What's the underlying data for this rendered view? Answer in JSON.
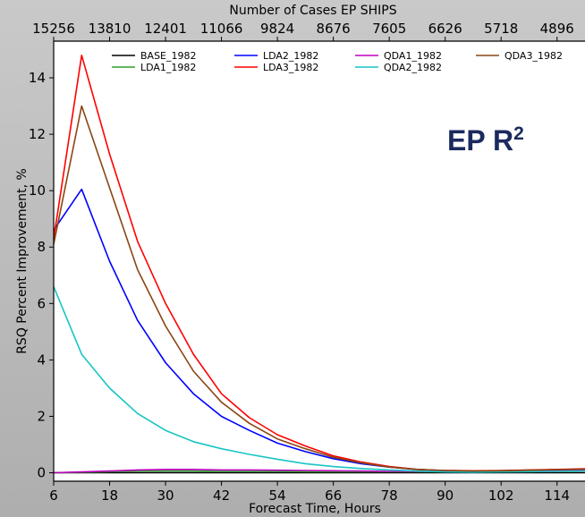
{
  "chart_data": {
    "type": "line",
    "top_axis_title": "Number of Cases EP SHIPS",
    "top_tick_labels": [
      "15256",
      "13810",
      "12401",
      "11066",
      "9824",
      "8676",
      "7605",
      "6626",
      "5718",
      "4896"
    ],
    "xlabel": "Forecast Time, Hours",
    "ylabel": "RSQ Percent Improvement, %",
    "xlim": [
      6,
      120
    ],
    "ylim": [
      -0.3,
      15.3
    ],
    "x_ticks": [
      6,
      18,
      30,
      42,
      54,
      66,
      78,
      90,
      102,
      114
    ],
    "y_ticks": [
      0,
      2,
      4,
      6,
      8,
      10,
      12,
      14
    ],
    "annotation": {
      "text": "EP R",
      "superscript": "2",
      "color": "#1b2a5e"
    },
    "legend_location": "top-right",
    "x": [
      6,
      12,
      18,
      24,
      30,
      36,
      42,
      48,
      54,
      60,
      66,
      72,
      78,
      84,
      90,
      96,
      102,
      108,
      114,
      120
    ],
    "series": [
      {
        "name": "BASE_1982",
        "color": "#000000",
        "values": [
          0,
          0,
          0,
          0,
          0,
          0,
          0,
          0,
          0,
          0,
          0,
          0,
          0,
          0,
          0,
          0,
          0,
          0,
          0,
          0
        ]
      },
      {
        "name": "LDA1_1982",
        "color": "#2ca02c",
        "values": [
          0,
          0.02,
          0.04,
          0.06,
          0.06,
          0.06,
          0.05,
          0.05,
          0.05,
          0.04,
          0.04,
          0.04,
          0.04,
          0.04,
          0.04,
          0.05,
          0.07,
          0.09,
          0.11,
          0.13
        ]
      },
      {
        "name": "LDA2_1982",
        "color": "#0000ff",
        "values": [
          8.6,
          10.05,
          7.5,
          5.4,
          3.9,
          2.8,
          2.0,
          1.5,
          1.05,
          0.75,
          0.5,
          0.32,
          0.2,
          0.12,
          0.07,
          0.06,
          0.07,
          0.08,
          0.1,
          0.12
        ]
      },
      {
        "name": "LDA3_1982",
        "color": "#ff0000",
        "values": [
          8.3,
          14.8,
          11.3,
          8.2,
          6.0,
          4.2,
          2.8,
          1.95,
          1.35,
          0.95,
          0.6,
          0.38,
          0.22,
          0.12,
          0.08,
          0.07,
          0.08,
          0.1,
          0.12,
          0.14
        ]
      },
      {
        "name": "QDA1_1982",
        "color": "#bf00bf",
        "values": [
          0,
          0.03,
          0.06,
          0.1,
          0.12,
          0.12,
          0.1,
          0.1,
          0.09,
          0.08,
          0.07,
          0.06,
          0.05,
          0.05,
          0.05,
          0.05,
          0.06,
          0.07,
          0.08,
          0.09
        ]
      },
      {
        "name": "QDA2_1982",
        "color": "#17c5c5",
        "values": [
          6.6,
          4.2,
          3.0,
          2.1,
          1.5,
          1.1,
          0.85,
          0.65,
          0.48,
          0.32,
          0.22,
          0.15,
          0.1,
          0.06,
          0.03,
          0.02,
          0.03,
          0.04,
          0.05,
          0.06
        ]
      },
      {
        "name": "QDA3_1982",
        "color": "#8b4513",
        "values": [
          8.1,
          13.0,
          10.1,
          7.2,
          5.2,
          3.6,
          2.5,
          1.75,
          1.2,
          0.85,
          0.55,
          0.35,
          0.2,
          0.12,
          0.08,
          0.06,
          0.07,
          0.09,
          0.11,
          0.13
        ]
      }
    ]
  }
}
